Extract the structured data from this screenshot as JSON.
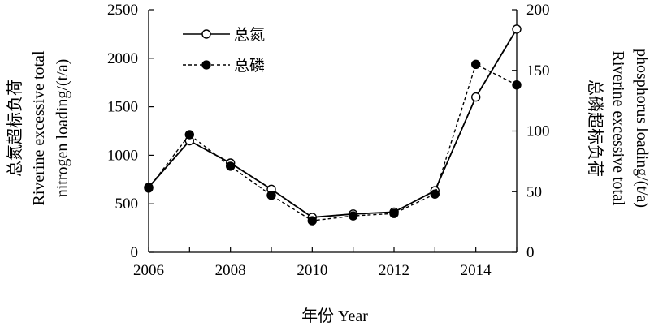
{
  "chart_data": {
    "type": "line",
    "x": [
      2006,
      2007,
      2008,
      2009,
      2010,
      2011,
      2012,
      2013,
      2014,
      2015
    ],
    "xlabel": "年份 Year",
    "xlim": [
      2006,
      2015
    ],
    "xticks": [
      "2006",
      "2008",
      "2010",
      "2012",
      "2014"
    ],
    "left_axis": {
      "label_line1": "总氮超标负荷",
      "label_line2": "Riverine excessive total",
      "label_line3": "nitrogen loading/(t/a)",
      "ylim": [
        0,
        2500
      ],
      "ticks": [
        "0",
        "500",
        "1000",
        "1500",
        "2000",
        "2500"
      ]
    },
    "right_axis": {
      "label_line1": "总磷超标负荷",
      "label_line2": "Riverine excessive total",
      "label_line3": "phosphorus loading/(t/a)",
      "ylim": [
        0,
        200
      ],
      "ticks": [
        "0",
        "50",
        "100",
        "150",
        "200"
      ]
    },
    "series": [
      {
        "name": "总氮",
        "axis": "left",
        "style": "solid",
        "marker": "open-circle",
        "color": "#000000",
        "values": [
          670,
          1150,
          920,
          650,
          360,
          395,
          415,
          635,
          1600,
          2300
        ]
      },
      {
        "name": "总磷",
        "axis": "right",
        "style": "dashed",
        "marker": "filled-circle",
        "color": "#000000",
        "values": [
          53,
          97,
          71,
          47,
          26,
          30,
          32,
          48,
          155,
          138
        ]
      }
    ],
    "legend_position": "top-left",
    "grid": false
  }
}
